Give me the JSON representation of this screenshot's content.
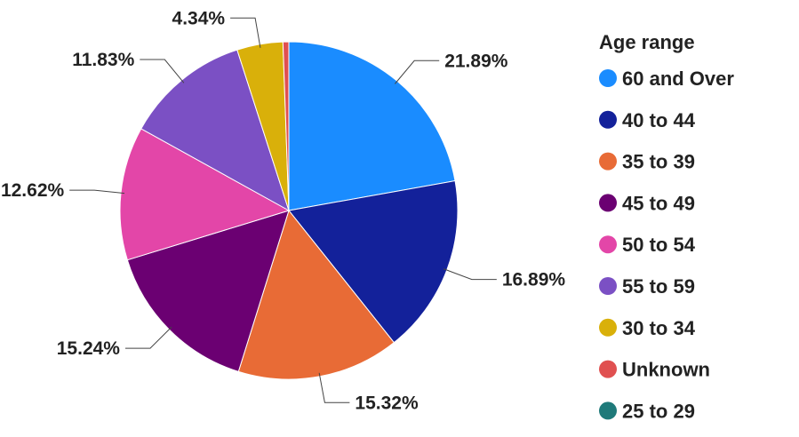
{
  "chart_data": {
    "type": "pie",
    "legend_title": "Age range",
    "legend_position": "right",
    "series": [
      {
        "name": "60 and Over",
        "value": 21.89,
        "label": "21.89%",
        "color": "#1a8cff"
      },
      {
        "name": "40 to 44",
        "value": 16.89,
        "label": "16.89%",
        "color": "#13219a"
      },
      {
        "name": "35 to 39",
        "value": 15.32,
        "label": "15.32%",
        "color": "#e86b36"
      },
      {
        "name": "45 to 49",
        "value": 15.24,
        "label": "15.24%",
        "color": "#6b0072"
      },
      {
        "name": "50 to 54",
        "value": 12.62,
        "label": "12.62%",
        "color": "#e346a8"
      },
      {
        "name": "55 to 59",
        "value": 11.83,
        "label": "11.83%",
        "color": "#7b50c4"
      },
      {
        "name": "30 to 34",
        "value": 4.34,
        "label": "4.34%",
        "color": "#d9b00a"
      },
      {
        "name": "Unknown",
        "value": 0.55,
        "label": "",
        "color": "#e05050"
      },
      {
        "name": "25 to 29",
        "value": 0.0,
        "label": "",
        "color": "#1f7a7a"
      }
    ]
  }
}
